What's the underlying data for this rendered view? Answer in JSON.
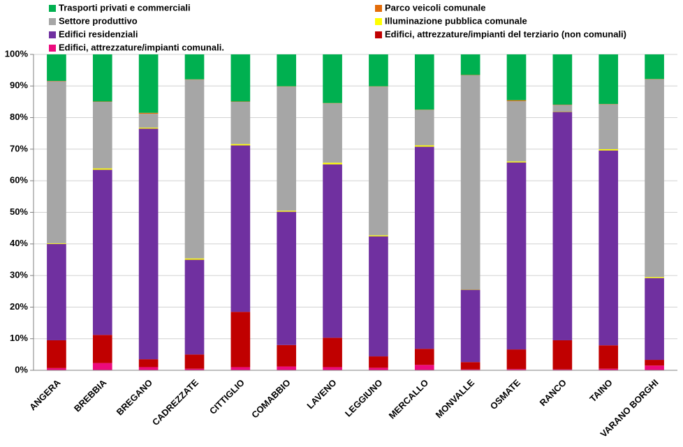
{
  "chart_data": {
    "type": "stacked-bar",
    "categories": [
      "ANGERA",
      "BREBBIA",
      "BREGANO",
      "CADREZZATE",
      "CITTIGLIO",
      "COMABBIO",
      "LAVENO",
      "LEGGIUNO",
      "MERCALLO",
      "MONVALLE",
      "OSMATE",
      "RANCO",
      "TAINO",
      "VARANO BORGHI"
    ],
    "series": [
      {
        "name": "Edifici, attrezzature/impianti comunali.",
        "color": "#ec0a7d",
        "values": [
          0.7,
          2.3,
          1.0,
          0.5,
          1.0,
          1.2,
          1.0,
          0.8,
          1.7,
          0.3,
          0.4,
          0.3,
          0.5,
          1.5
        ]
      },
      {
        "name": "Edifici, attrezzature/impianti del terziario (non comunali)",
        "color": "#c00000",
        "values": [
          8.8,
          8.9,
          2.5,
          4.5,
          17.5,
          6.8,
          9.3,
          3.6,
          5.1,
          2.3,
          6.2,
          9.2,
          7.4,
          1.8
        ]
      },
      {
        "name": "Edifici residenziali",
        "color": "#7030a0",
        "values": [
          30.5,
          52.3,
          73.0,
          30.0,
          52.7,
          42.2,
          54.9,
          38.0,
          64.0,
          22.9,
          59.2,
          72.3,
          61.7,
          25.9
        ]
      },
      {
        "name": "Illuminazione pubblica comunale",
        "color": "#ffff00",
        "values": [
          0.2,
          0.4,
          0.3,
          0.4,
          0.4,
          0.3,
          0.5,
          0.3,
          0.4,
          0.1,
          0.3,
          0.1,
          0.4,
          0.3
        ]
      },
      {
        "name": "Settore produttivo",
        "color": "#a6a6a6",
        "values": [
          51.3,
          21.1,
          4.4,
          56.6,
          13.4,
          39.3,
          18.8,
          47.1,
          11.2,
          67.8,
          19.1,
          2.1,
          14.2,
          62.6
        ]
      },
      {
        "name": "Parco veicoli comunale",
        "color": "#e36c09",
        "values": [
          0.1,
          0.1,
          0.3,
          0.1,
          0.1,
          0.1,
          0.1,
          0.1,
          0.1,
          0.1,
          0.3,
          0.1,
          0.1,
          0.1
        ]
      },
      {
        "name": "Trasporti privati e commerciali",
        "color": "#00b050",
        "values": [
          8.4,
          14.9,
          18.5,
          7.9,
          14.9,
          10.1,
          15.4,
          10.1,
          17.5,
          6.5,
          14.5,
          15.9,
          15.7,
          7.8
        ]
      }
    ],
    "ylim": [
      0,
      100
    ],
    "yticks": [
      {
        "value": 0,
        "label": "0%"
      },
      {
        "value": 10,
        "label": "10%"
      },
      {
        "value": 20,
        "label": "20%"
      },
      {
        "value": 30,
        "label": "30%"
      },
      {
        "value": 40,
        "label": "40%"
      },
      {
        "value": 50,
        "label": "50%"
      },
      {
        "value": 60,
        "label": "60%"
      },
      {
        "value": 70,
        "label": "70%"
      },
      {
        "value": 80,
        "label": "80%"
      },
      {
        "value": 90,
        "label": "90%"
      },
      {
        "value": 100,
        "label": "100%"
      }
    ],
    "grid": true,
    "legend": "top"
  }
}
